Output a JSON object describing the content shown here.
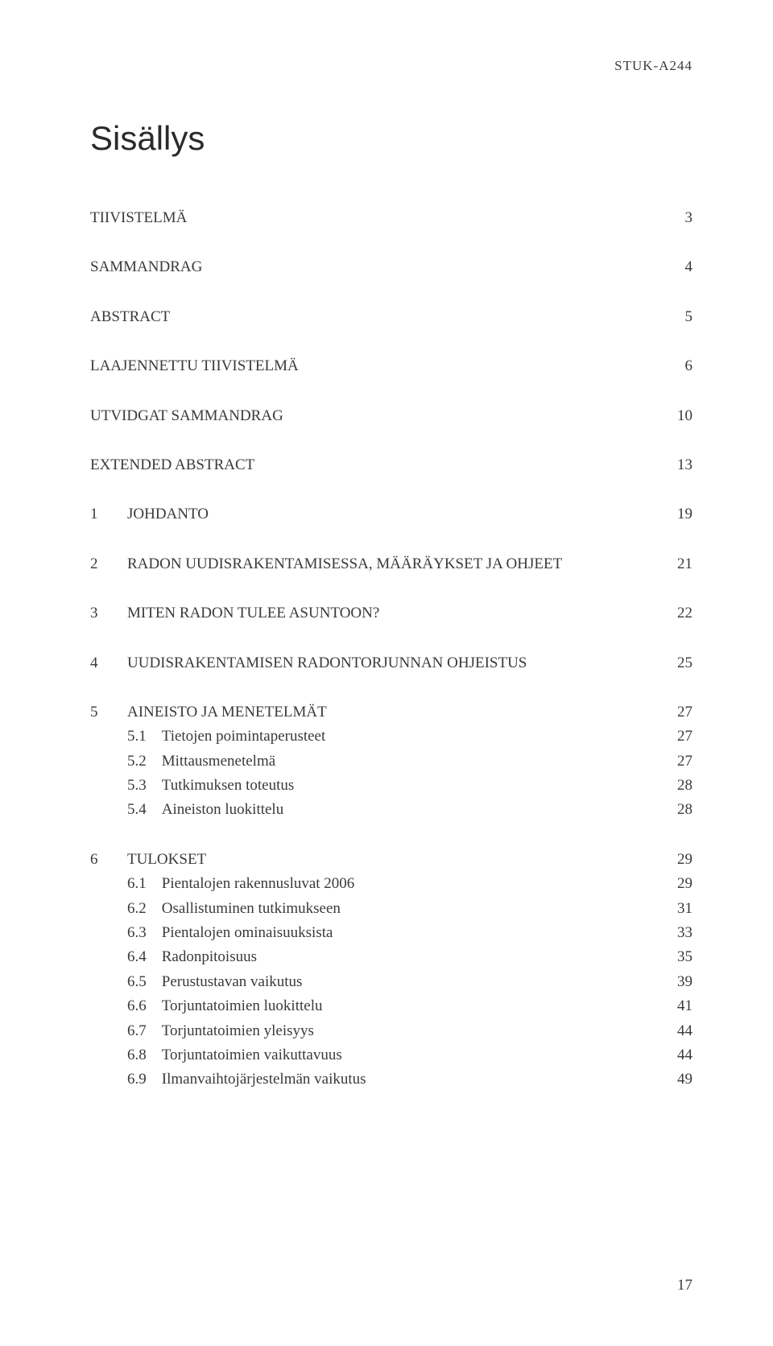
{
  "header": "STUK-A244",
  "title": "Sisällys",
  "page_number": "17",
  "toc": {
    "items": [
      {
        "num": "",
        "label": "TIIVISTELMÄ",
        "page": "3",
        "spaced": true
      },
      {
        "num": "",
        "label": "SAMMANDRAG",
        "page": "4",
        "spaced": true
      },
      {
        "num": "",
        "label": "ABSTRACT",
        "page": "5",
        "spaced": true
      },
      {
        "num": "",
        "label": "LAAJENNETTU TIIVISTELMÄ",
        "page": "6",
        "spaced": true
      },
      {
        "num": "",
        "label": "UTVIDGAT SAMMANDRAG",
        "page": "10",
        "spaced": true
      },
      {
        "num": "",
        "label": "EXTENDED ABSTRACT",
        "page": "13",
        "spaced": true
      },
      {
        "num": "1",
        "label": "JOHDANTO",
        "page": "19",
        "spaced": true
      },
      {
        "num": "2",
        "label": "RADON UUDISRAKENTAMISESSA, MÄÄRÄYKSET JA OHJEET",
        "page": "21",
        "spaced": true
      },
      {
        "num": "3",
        "label": "MITEN RADON TULEE ASUNTOON?",
        "page": "22",
        "spaced": true
      },
      {
        "num": "4",
        "label": "UUDISRAKENTAMISEN RADONTORJUNNAN OHJEISTUS",
        "page": "25",
        "spaced": true
      },
      {
        "num": "5",
        "label": "AINEISTO JA MENETELMÄT",
        "page": "27",
        "spaced": true
      },
      {
        "num": "5.1",
        "label": "Tietojen poimintaperusteet",
        "page": "27",
        "sub": true
      },
      {
        "num": "5.2",
        "label": "Mittausmenetelmä",
        "page": "27",
        "sub": true
      },
      {
        "num": "5.3",
        "label": "Tutkimuksen toteutus",
        "page": "28",
        "sub": true
      },
      {
        "num": "5.4",
        "label": "Aineiston luokittelu",
        "page": "28",
        "sub": true
      },
      {
        "num": "6",
        "label": "TULOKSET",
        "page": "29",
        "spaced": true
      },
      {
        "num": "6.1",
        "label": "Pientalojen rakennusluvat 2006",
        "page": "29",
        "sub": true
      },
      {
        "num": "6.2",
        "label": "Osallistuminen tutkimukseen",
        "page": "31",
        "sub": true
      },
      {
        "num": "6.3",
        "label": "Pientalojen ominaisuuksista",
        "page": "33",
        "sub": true
      },
      {
        "num": "6.4",
        "label": "Radonpitoisuus",
        "page": "35",
        "sub": true
      },
      {
        "num": "6.5",
        "label": "Perustustavan vaikutus",
        "page": "39",
        "sub": true
      },
      {
        "num": "6.6",
        "label": "Torjuntatoimien luokittelu",
        "page": "41",
        "sub": true
      },
      {
        "num": "6.7",
        "label": "Torjuntatoimien yleisyys",
        "page": "44",
        "sub": true
      },
      {
        "num": "6.8",
        "label": "Torjuntatoimien vaikuttavuus",
        "page": "44",
        "sub": true
      },
      {
        "num": "6.9",
        "label": "Ilmanvaihtojärjestelmän vaikutus",
        "page": "49",
        "sub": true
      }
    ]
  }
}
